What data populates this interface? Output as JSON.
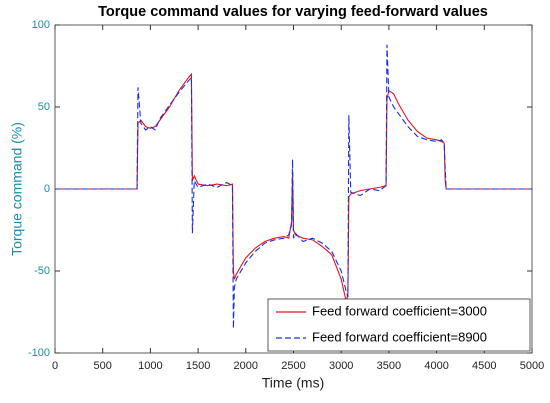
{
  "chart_data": {
    "type": "line",
    "title": "Torque command values for varying feed-forward values",
    "x_label": "Time (ms)",
    "y_label": "Torque command (%)",
    "x": [
      0,
      860,
      870,
      900,
      950,
      1000,
      1050,
      1100,
      1200,
      1300,
      1400,
      1430,
      1440,
      1460,
      1500,
      1600,
      1700,
      1800,
      1860,
      1870,
      1880,
      1900,
      2000,
      2100,
      2200,
      2300,
      2400,
      2450,
      2480,
      2490,
      2500,
      2520,
      2600,
      2700,
      2800,
      2900,
      3000,
      3050,
      3070,
      3080,
      3100,
      3200,
      3300,
      3400,
      3470,
      3480,
      3500,
      3550,
      3600,
      3700,
      3800,
      3900,
      4000,
      4050,
      4080,
      4090,
      4100,
      4150,
      5000
    ],
    "series": [
      {
        "name": "Feed forward coefficient=3000",
        "color": "#e8101c",
        "dash": false,
        "values": [
          0,
          0,
          40,
          42,
          38,
          37,
          38,
          42,
          50,
          60,
          68,
          70,
          5,
          8,
          3,
          2,
          3,
          2,
          3,
          -50,
          -55,
          -52,
          -42,
          -36,
          -32,
          -30,
          -29,
          -30,
          -20,
          10,
          -25,
          -28,
          -30,
          -31,
          -35,
          -40,
          -55,
          -68,
          -65,
          -5,
          -3,
          -1,
          0,
          1,
          2,
          55,
          60,
          58,
          52,
          42,
          35,
          31,
          30,
          29,
          28,
          5,
          0,
          0,
          0
        ]
      },
      {
        "name": "Feed forward coefficient=8900",
        "color": "#1a2ee0",
        "dash": true,
        "values": [
          0,
          0,
          62,
          40,
          36,
          38,
          36,
          43,
          51,
          59,
          66,
          68,
          -27,
          5,
          1,
          3,
          1,
          4,
          2,
          -85,
          -60,
          -55,
          -45,
          -38,
          -33,
          -31,
          -30,
          -28,
          -22,
          18,
          -30,
          -27,
          -32,
          -30,
          -33,
          -38,
          -50,
          -62,
          -66,
          45,
          -2,
          -4,
          0,
          -1,
          2,
          88,
          56,
          50,
          46,
          38,
          32,
          30,
          29,
          30,
          28,
          12,
          0,
          0,
          0
        ]
      }
    ],
    "xlim": [
      0,
      5000
    ],
    "xticks": [
      0,
      500,
      1000,
      1500,
      2000,
      2500,
      3000,
      3500,
      4000,
      4500,
      5000
    ],
    "ylim": [
      -100,
      100
    ],
    "yticks": [
      -100,
      -50,
      0,
      50,
      100
    ],
    "grid": false,
    "legend": "lower right"
  }
}
